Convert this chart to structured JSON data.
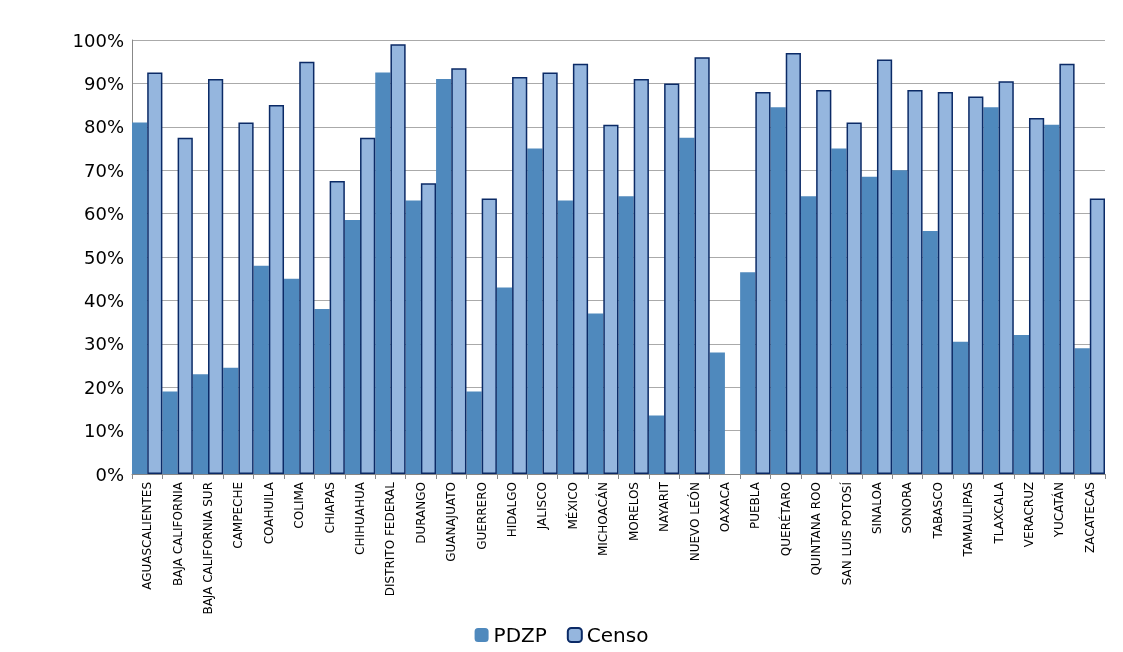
{
  "chart_data": {
    "type": "bar",
    "categories": [
      "AGUASCALIENTES",
      "BAJA CALIFORNIA",
      "BAJA CALIFORNIA SUR",
      "CAMPECHE",
      "COAHUILA",
      "COLIMA",
      "CHIAPAS",
      "CHIHUAHUA",
      "DISTRITO FEDERAL",
      "DURANGO",
      "GUANAJUATO",
      "GUERRERO",
      "HIDALGO",
      "JALISCO",
      "MÉXICO",
      "MICHOACÁN",
      "MORELOS",
      "NAYARIT",
      "NUEVO LEÓN",
      "OAXACA",
      "PUEBLA",
      "QUERÉTARO",
      "QUINTANA ROO",
      "SAN LUIS POTOSÍ",
      "SINALOA",
      "SONORA",
      "TABASCO",
      "TAMAULIPAS",
      "TLAXCALA",
      "VERACRUZ",
      "YUCATÁN",
      "ZACATECAS"
    ],
    "series": [
      {
        "name": "PDZP",
        "color": "#4f89bd",
        "values": [
          81,
          19,
          23,
          24.5,
          48,
          45,
          38,
          58.5,
          92.5,
          63,
          91,
          19,
          43,
          75,
          63,
          37,
          64,
          13.5,
          77.5,
          28,
          46.5,
          84.5,
          64,
          75,
          68.5,
          70,
          56,
          30.5,
          84.5,
          32,
          80.5,
          29
        ]
      },
      {
        "name": "Censo",
        "color": "#95b6de",
        "values": [
          92.5,
          77.5,
          91,
          81,
          85,
          95,
          67.5,
          77.5,
          99,
          67,
          93.5,
          63.5,
          91.5,
          92.5,
          94.5,
          80.5,
          91,
          90,
          96,
          null,
          88,
          97,
          88.5,
          81,
          95.5,
          88.5,
          88,
          87,
          90.5,
          82,
          94.5,
          63.5
        ]
      }
    ],
    "ylim": [
      0,
      100
    ],
    "yticks": [
      {
        "value": 0,
        "label": "0%"
      },
      {
        "value": 10,
        "label": "10%"
      },
      {
        "value": 20,
        "label": "20%"
      },
      {
        "value": 30,
        "label": "30%"
      },
      {
        "value": 40,
        "label": "40%"
      },
      {
        "value": 50,
        "label": "50%"
      },
      {
        "value": 60,
        "label": "60%"
      },
      {
        "value": 70,
        "label": "70%"
      },
      {
        "value": 80,
        "label": "80%"
      },
      {
        "value": 90,
        "label": "90%"
      },
      {
        "value": 100,
        "label": "100%"
      }
    ],
    "grid": "y",
    "legend": "bottom"
  }
}
